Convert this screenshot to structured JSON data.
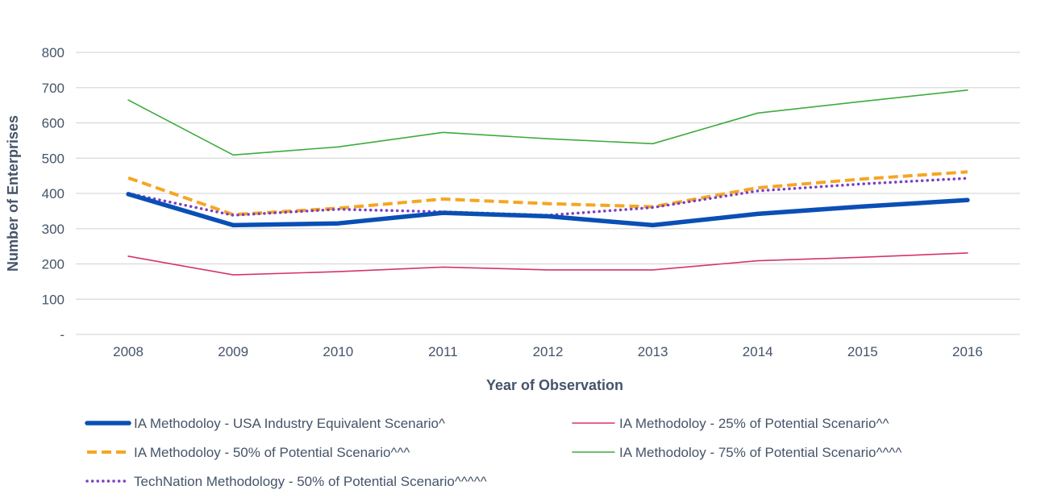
{
  "chart_data": {
    "type": "line",
    "title": "",
    "xlabel": "Year of Observation",
    "ylabel": "Number of Enterprises",
    "ylim": [
      0,
      800
    ],
    "y_ticks": [
      {
        "value": 0,
        "label": "-"
      },
      {
        "value": 100,
        "label": "100"
      },
      {
        "value": 200,
        "label": "200"
      },
      {
        "value": 300,
        "label": "300"
      },
      {
        "value": 400,
        "label": "400"
      },
      {
        "value": 500,
        "label": "500"
      },
      {
        "value": 600,
        "label": "600"
      },
      {
        "value": 700,
        "label": "700"
      },
      {
        "value": 800,
        "label": "800"
      }
    ],
    "grid": true,
    "legend_position": "bottom",
    "categories": [
      "2008",
      "2009",
      "2010",
      "2011",
      "2012",
      "2013",
      "2014",
      "2015",
      "2016"
    ],
    "series": [
      {
        "name": "IA Methodoloy - USA Industry Equivalent Scenario^",
        "color": "#0a4fb5",
        "style": "solid-thick",
        "values": [
          398,
          310,
          315,
          345,
          335,
          310,
          342,
          363,
          381
        ]
      },
      {
        "name": "IA Methodoloy - 25% of Potential Scenario^^",
        "color": "#d6336c",
        "style": "solid-thin",
        "values": [
          222,
          169,
          178,
          191,
          183,
          183,
          209,
          219,
          231
        ]
      },
      {
        "name": "IA Methodoloy - 50% of Potential Scenario^^^",
        "color": "#f5a623",
        "style": "dashed",
        "values": [
          444,
          340,
          358,
          384,
          371,
          362,
          416,
          441,
          461
        ]
      },
      {
        "name": "IA Methodoloy - 75% of Potential Scenario^^^^",
        "color": "#3dab3d",
        "style": "solid-thin",
        "values": [
          665,
          509,
          532,
          573,
          555,
          541,
          628,
          661,
          693
        ]
      },
      {
        "name": "TechNation Methodology - 50% of Potential Scenario^^^^^",
        "color": "#7b3fc4",
        "style": "dotted",
        "values": [
          400,
          338,
          355,
          348,
          338,
          360,
          407,
          427,
          443
        ]
      }
    ]
  }
}
